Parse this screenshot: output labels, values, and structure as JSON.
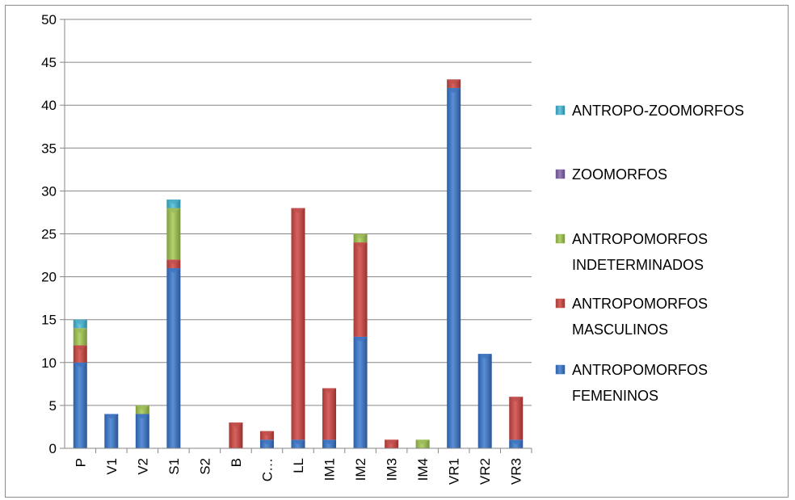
{
  "chart_data": {
    "type": "bar",
    "stacked": true,
    "title": "",
    "xlabel": "",
    "ylabel": "",
    "ylim": [
      0,
      50
    ],
    "yticks": [
      0,
      5,
      10,
      15,
      20,
      25,
      30,
      35,
      40,
      45,
      50
    ],
    "grid": true,
    "legend_position": "right",
    "categories": [
      "P",
      "V1",
      "V2",
      "S1",
      "S2",
      "B",
      "C…",
      "LL",
      "IM1",
      "IM2",
      "IM3",
      "IM4",
      "VR1",
      "VR2",
      "VR3"
    ],
    "series": [
      {
        "name": "ANTROPOMORFOS FEMENINOS",
        "legend_lines": [
          "ANTROPOMORFOS",
          "FEMENINOS"
        ],
        "color": "#3f74c0",
        "values": [
          10,
          4,
          4,
          21,
          0,
          0,
          1,
          1,
          1,
          13,
          0,
          0,
          42,
          11,
          1
        ]
      },
      {
        "name": "ANTROPOMORFOS MASCULINOS",
        "legend_lines": [
          "ANTROPOMORFOS",
          "MASCULINOS"
        ],
        "color": "#c0504d",
        "values": [
          2,
          0,
          0,
          1,
          0,
          3,
          1,
          27,
          6,
          11,
          1,
          0,
          1,
          0,
          5
        ]
      },
      {
        "name": "ANTROPOMORFOS INDETERMINADOS",
        "legend_lines": [
          "ANTROPOMORFOS",
          "INDETERMINADOS"
        ],
        "color": "#9bbb59",
        "values": [
          2,
          0,
          1,
          6,
          0,
          0,
          0,
          0,
          0,
          1,
          0,
          1,
          0,
          0,
          0
        ]
      },
      {
        "name": "ZOOMORFOS",
        "legend_lines": [
          "ZOOMORFOS"
        ],
        "color": "#8064a2",
        "values": [
          0,
          0,
          0,
          0,
          0,
          0,
          0,
          0,
          0,
          0,
          0,
          0,
          0,
          0,
          0
        ]
      },
      {
        "name": "ANTROPO-ZOOMORFOS",
        "legend_lines": [
          "ANTROPO-ZOOMORFOS"
        ],
        "color": "#4bacc6",
        "values": [
          1,
          0,
          0,
          1,
          0,
          0,
          0,
          0,
          0,
          0,
          0,
          0,
          0,
          0,
          0
        ]
      }
    ]
  }
}
